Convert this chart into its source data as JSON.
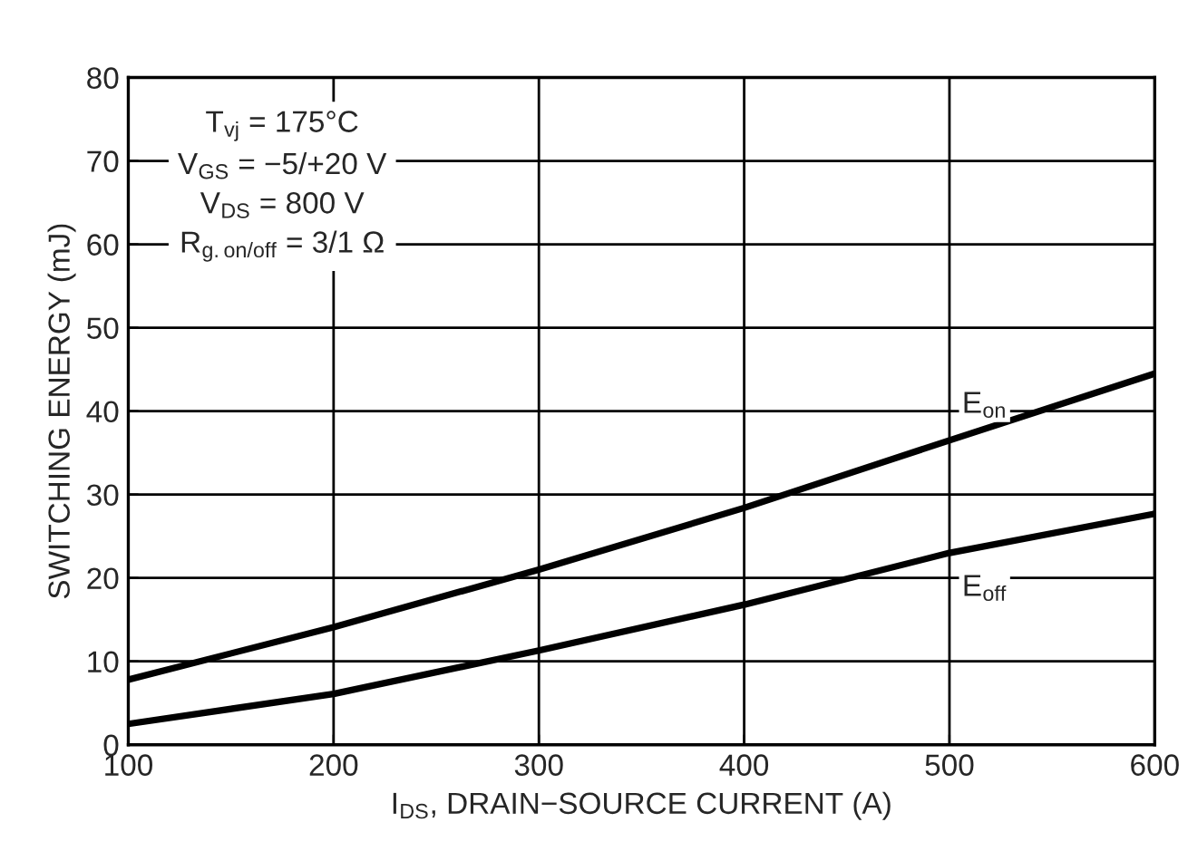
{
  "chart_data": {
    "type": "line",
    "xlabel": "I$_{DS}$, DRAIN−SOURCE CURRENT (A)",
    "ylabel": "SWITCHING ENERGY (mJ)",
    "x": [
      100,
      200,
      300,
      400,
      500,
      600
    ],
    "series": [
      {
        "name": "E$_{on}$",
        "color": "#000000",
        "values": [
          7.8,
          14.1,
          21.0,
          28.4,
          36.5,
          44.5
        ]
      },
      {
        "name": "E$_{off}$",
        "color": "#000000",
        "values": [
          2.5,
          6.1,
          11.3,
          16.8,
          23.0,
          27.7
        ]
      }
    ],
    "annotations": [
      "T$_{vj}$ = 175°C",
      "V$_{GS}$ = −5/+20 V",
      "V$_{DS}$ = 800 V",
      "R$_{g.on/off}$ = 3/1 Ω"
    ],
    "xlim": [
      100,
      600
    ],
    "xticks": [
      100,
      200,
      300,
      400,
      500,
      600
    ],
    "ylim": [
      0,
      80
    ],
    "yticks": [
      0,
      10,
      20,
      30,
      40,
      50,
      60,
      70,
      80
    ],
    "grid": true,
    "marker": "none",
    "line_style": "solid",
    "legend": false
  }
}
